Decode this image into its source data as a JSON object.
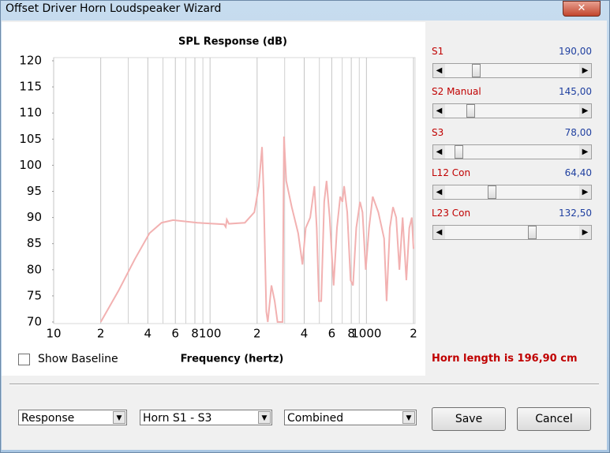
{
  "window": {
    "title": "Offset Driver Horn Loudspeaker Wizard"
  },
  "chart_data": {
    "type": "line",
    "title": "SPL Response (dB)",
    "x_label": "Frequency (hertz)",
    "x": [
      20,
      26,
      33,
      41,
      49,
      58,
      83,
      123,
      126,
      128,
      132,
      167,
      192,
      205,
      215,
      220,
      229,
      234,
      247,
      259,
      270,
      291,
      297,
      307,
      333,
      366,
      390,
      409,
      437,
      465,
      481,
      497,
      514,
      537,
      556,
      582,
      617,
      648,
      680,
      702,
      720,
      754,
      792,
      821,
      861,
      910,
      944,
      990,
      1039,
      1097,
      1192,
      1297,
      1346,
      1411,
      1479,
      1550,
      1625,
      1704,
      1800,
      1880,
      1950,
      2000
    ],
    "values": [
      70,
      76,
      82,
      87,
      89,
      89.5,
      89,
      88.7,
      88.2,
      89.6,
      88.8,
      89,
      91,
      96,
      103.5,
      95,
      72,
      70,
      77,
      74,
      70,
      70,
      105.5,
      97,
      92,
      87,
      81,
      88,
      90,
      96,
      88,
      74,
      74,
      93,
      97,
      90,
      77,
      88,
      94,
      93,
      96,
      91,
      78,
      77,
      88,
      93,
      91,
      80,
      88,
      94,
      91,
      86,
      74,
      88,
      92,
      90,
      80,
      90,
      78,
      88,
      90,
      84
    ],
    "color": "#f2b1b1",
    "xscale": "log",
    "xlim": [
      10,
      2000
    ],
    "ylim": [
      70,
      120
    ],
    "xticks": [
      10,
      {
        "value": 20,
        "label": "2"
      },
      {
        "value": 40,
        "label": "4"
      },
      {
        "value": 60,
        "label": "6"
      },
      {
        "value": 80,
        "label": "8"
      },
      100,
      {
        "value": 200,
        "label": "2"
      },
      {
        "value": 400,
        "label": "4"
      },
      {
        "value": 600,
        "label": "6"
      },
      {
        "value": 800,
        "label": "8"
      },
      1000,
      {
        "value": 2000,
        "label": "2"
      }
    ],
    "xgrid_minor": [
      30,
      50,
      70,
      90,
      300,
      500,
      700,
      900
    ],
    "yticks": [
      70,
      75,
      80,
      85,
      90,
      95,
      100,
      105,
      110,
      115,
      120
    ],
    "grid": "x"
  },
  "sliders": [
    {
      "label": "S1",
      "value": "190,00"
    },
    {
      "label": "S2 Manual",
      "value": "145,00"
    },
    {
      "label": "S3",
      "value": "78,00"
    },
    {
      "label": "L12 Con",
      "value": "64,40"
    },
    {
      "label": "L23 Con",
      "value": "132,50"
    }
  ],
  "show_baseline": {
    "label": "Show Baseline",
    "checked": false
  },
  "horn_length": "Horn length is 196,90 cm",
  "dropdowns": [
    "Response",
    "Horn S1 - S3",
    "Combined"
  ],
  "buttons": [
    "Save",
    "Cancel"
  ]
}
